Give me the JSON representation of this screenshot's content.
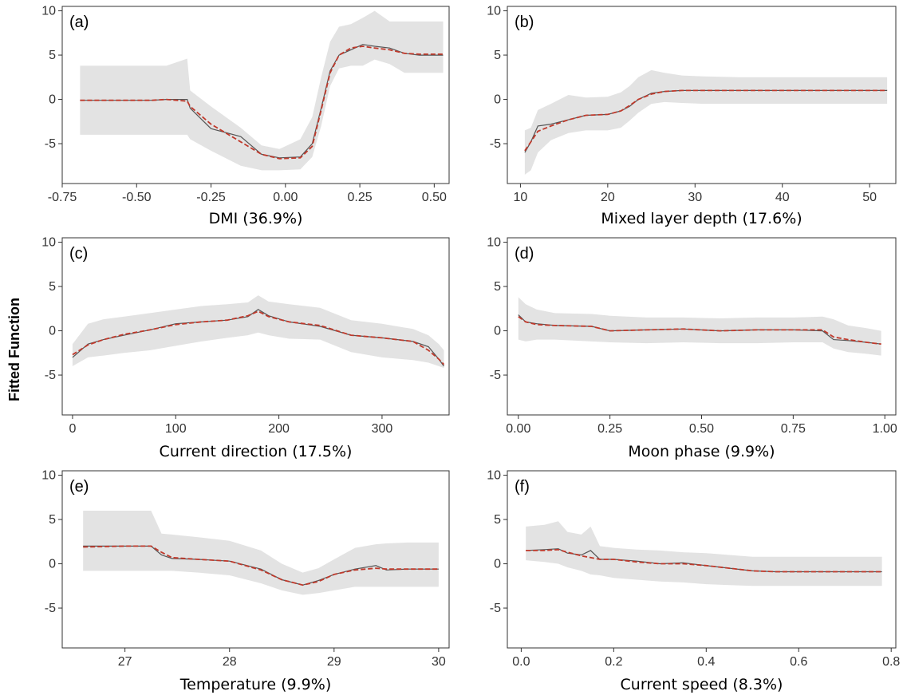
{
  "figure": {
    "ylabel": "Fitted Function"
  },
  "colors": {
    "band": "#e3e3e3",
    "observed_line": "#555555",
    "fitted_line": "#c0392b",
    "frame": "#333333"
  },
  "chart_data": [
    {
      "type": "line",
      "panel_label": "(a)",
      "xlabel": "DMI (36.9%)",
      "xlim": [
        -0.75,
        0.55
      ],
      "ylim": [
        -9.5,
        10.5
      ],
      "xticks": [
        -0.75,
        -0.5,
        -0.25,
        0.0,
        0.25,
        0.5
      ],
      "xtick_labels": [
        "-0.75",
        "-0.50",
        "-0.25",
        "0.00",
        "0.25",
        "0.50"
      ],
      "yticks": [
        10,
        5,
        0,
        -5
      ],
      "ytick_labels": [
        "10",
        "5",
        "0",
        "-5"
      ],
      "x": [
        -0.69,
        -0.45,
        -0.4,
        -0.33,
        -0.32,
        -0.25,
        -0.15,
        -0.08,
        -0.02,
        0.05,
        0.09,
        0.12,
        0.15,
        0.18,
        0.22,
        0.26,
        0.3,
        0.35,
        0.4,
        0.45,
        0.5,
        0.53
      ],
      "series": [
        {
          "role": "upper",
          "values": [
            3.8,
            3.8,
            3.8,
            4.6,
            1.0,
            -0.8,
            -3.2,
            -5.2,
            -5.6,
            -4.5,
            -2.0,
            2.5,
            6.5,
            8.2,
            8.5,
            9.2,
            10.0,
            8.8,
            8.8,
            8.8,
            8.8,
            8.8
          ]
        },
        {
          "role": "lower",
          "values": [
            -4.0,
            -4.0,
            -4.0,
            -4.0,
            -4.5,
            -5.8,
            -7.5,
            -8.0,
            -8.0,
            -7.9,
            -6.5,
            -3.0,
            1.5,
            3.5,
            3.8,
            3.8,
            4.5,
            4.0,
            3.0,
            3.0,
            3.0,
            3.0
          ]
        },
        {
          "role": "observed",
          "values": [
            -0.1,
            -0.1,
            0.0,
            0.0,
            -1.0,
            -3.3,
            -4.2,
            -6.2,
            -6.6,
            -6.5,
            -5.0,
            -1.0,
            3.2,
            5.0,
            5.6,
            6.2,
            6.0,
            5.8,
            5.2,
            5.0,
            5.0,
            5.0
          ]
        },
        {
          "role": "fitted",
          "values": [
            -0.1,
            -0.1,
            0.0,
            -0.2,
            -0.8,
            -2.8,
            -4.8,
            -6.2,
            -6.7,
            -6.6,
            -5.3,
            -1.2,
            3.0,
            5.0,
            5.8,
            6.0,
            5.8,
            5.6,
            5.2,
            5.1,
            5.1,
            5.1
          ]
        }
      ]
    },
    {
      "type": "line",
      "panel_label": "(b)",
      "xlabel": "Mixed layer depth (17.6%)",
      "xlim": [
        8.5,
        53
      ],
      "ylim": [
        -9.5,
        10.5
      ],
      "xticks": [
        10,
        20,
        30,
        40,
        50
      ],
      "xtick_labels": [
        "10",
        "20",
        "30",
        "40",
        "50"
      ],
      "yticks": [
        10,
        5,
        0,
        -5
      ],
      "ytick_labels": [
        "10",
        "5",
        "0",
        "-5"
      ],
      "x": [
        10.5,
        11.2,
        12.0,
        13.5,
        15.5,
        17.5,
        20.0,
        21.5,
        22.5,
        23.5,
        25.0,
        26.5,
        28.5,
        31.0,
        35.0,
        40.0,
        45.0,
        52.0
      ],
      "series": [
        {
          "role": "upper",
          "values": [
            -3.5,
            -3.2,
            -1.2,
            -0.5,
            0.5,
            0.2,
            0.3,
            0.8,
            1.5,
            2.5,
            3.3,
            3.0,
            2.7,
            2.6,
            2.5,
            2.5,
            2.5,
            2.5
          ]
        },
        {
          "role": "lower",
          "values": [
            -8.5,
            -8.0,
            -6.0,
            -4.6,
            -3.8,
            -3.5,
            -3.5,
            -3.2,
            -2.4,
            -1.5,
            -0.5,
            -0.3,
            -0.4,
            -0.5,
            -0.5,
            -0.5,
            -0.5,
            -0.5
          ]
        },
        {
          "role": "observed",
          "values": [
            -6.0,
            -4.8,
            -3.0,
            -2.8,
            -2.3,
            -1.8,
            -1.7,
            -1.3,
            -0.8,
            0.0,
            0.7,
            0.9,
            1.0,
            1.0,
            1.0,
            1.0,
            1.0,
            1.0
          ]
        },
        {
          "role": "fitted",
          "values": [
            -5.8,
            -4.8,
            -3.6,
            -3.0,
            -2.3,
            -1.8,
            -1.7,
            -1.3,
            -0.7,
            0.0,
            0.6,
            0.9,
            1.0,
            1.0,
            1.0,
            1.0,
            1.0,
            1.0
          ]
        }
      ]
    },
    {
      "type": "line",
      "panel_label": "(c)",
      "xlabel": "Current direction (17.5%)",
      "xlim": [
        -10,
        365
      ],
      "ylim": [
        -9.5,
        10.5
      ],
      "xticks": [
        0,
        100,
        200,
        300
      ],
      "xtick_labels": [
        "0",
        "100",
        "200",
        "300"
      ],
      "yticks": [
        10,
        5,
        0,
        -5
      ],
      "ytick_labels": [
        "10",
        "5",
        "0",
        "-5"
      ],
      "x": [
        0,
        15,
        30,
        50,
        75,
        100,
        125,
        150,
        170,
        180,
        190,
        210,
        240,
        270,
        300,
        330,
        345,
        355,
        360
      ],
      "series": [
        {
          "role": "upper",
          "values": [
            -1.5,
            0.8,
            1.3,
            1.6,
            2.0,
            2.4,
            2.8,
            3.0,
            3.2,
            4.0,
            3.3,
            3.0,
            2.6,
            1.2,
            0.8,
            0.2,
            -0.5,
            -1.5,
            -2.2
          ]
        },
        {
          "role": "lower",
          "values": [
            -4.0,
            -3.0,
            -2.8,
            -2.5,
            -2.2,
            -1.7,
            -1.2,
            -0.8,
            -0.5,
            -0.2,
            -0.5,
            -0.9,
            -1.0,
            -2.4,
            -3.0,
            -3.3,
            -3.6,
            -4.0,
            -4.2
          ]
        },
        {
          "role": "observed",
          "values": [
            -3.0,
            -1.5,
            -1.0,
            -0.5,
            0.1,
            0.8,
            1.0,
            1.2,
            1.6,
            2.4,
            1.7,
            1.0,
            0.5,
            -0.5,
            -0.8,
            -1.2,
            -1.8,
            -3.2,
            -4.0
          ]
        },
        {
          "role": "fitted",
          "values": [
            -2.7,
            -1.6,
            -1.0,
            -0.4,
            0.1,
            0.7,
            1.0,
            1.2,
            1.7,
            2.2,
            1.6,
            1.0,
            0.6,
            -0.5,
            -0.8,
            -1.2,
            -2.2,
            -3.2,
            -3.8
          ]
        }
      ]
    },
    {
      "type": "line",
      "panel_label": "(d)",
      "xlabel": "Moon phase (9.9%)",
      "xlim": [
        -0.03,
        1.03
      ],
      "ylim": [
        -9.5,
        10.5
      ],
      "xticks": [
        0.0,
        0.25,
        0.5,
        0.75,
        1.0
      ],
      "xtick_labels": [
        "0.00",
        "0.25",
        "0.50",
        "0.75",
        "1.00"
      ],
      "yticks": [
        10,
        5,
        0,
        -5
      ],
      "ytick_labels": [
        "10",
        "5",
        "0",
        "-5"
      ],
      "x": [
        0.0,
        0.02,
        0.05,
        0.1,
        0.2,
        0.25,
        0.35,
        0.45,
        0.55,
        0.65,
        0.75,
        0.83,
        0.86,
        0.9,
        0.95,
        0.99
      ],
      "series": [
        {
          "role": "upper",
          "values": [
            3.8,
            3.0,
            2.4,
            2.0,
            1.9,
            1.7,
            1.5,
            1.5,
            1.4,
            1.5,
            1.5,
            1.6,
            1.3,
            0.6,
            0.3,
            0.0
          ]
        },
        {
          "role": "lower",
          "values": [
            -1.0,
            -1.2,
            -1.0,
            -1.0,
            -1.2,
            -1.3,
            -1.4,
            -1.3,
            -1.4,
            -1.4,
            -1.3,
            -1.3,
            -2.0,
            -2.4,
            -2.6,
            -2.8
          ]
        },
        {
          "role": "observed",
          "values": [
            1.8,
            1.0,
            0.8,
            0.6,
            0.5,
            0.0,
            0.1,
            0.2,
            0.0,
            0.1,
            0.1,
            0.0,
            -1.0,
            -1.1,
            -1.3,
            -1.5
          ]
        },
        {
          "role": "fitted",
          "values": [
            1.6,
            1.0,
            0.7,
            0.6,
            0.5,
            0.0,
            0.1,
            0.2,
            0.0,
            0.1,
            0.1,
            0.1,
            -0.7,
            -1.0,
            -1.3,
            -1.5
          ]
        }
      ]
    },
    {
      "type": "line",
      "panel_label": "(e)",
      "xlabel": "Temperature (9.9%)",
      "xlim": [
        26.4,
        30.1
      ],
      "ylim": [
        -9.5,
        10.5
      ],
      "xticks": [
        27,
        28,
        29,
        30
      ],
      "xtick_labels": [
        "27",
        "28",
        "29",
        "30"
      ],
      "yticks": [
        10,
        5,
        0,
        -5
      ],
      "ytick_labels": [
        "10",
        "5",
        "0",
        "-5"
      ],
      "x": [
        26.6,
        27.0,
        27.25,
        27.35,
        27.45,
        27.7,
        28.0,
        28.3,
        28.5,
        28.7,
        28.85,
        29.0,
        29.2,
        29.4,
        29.5,
        29.7,
        30.0
      ],
      "series": [
        {
          "role": "upper",
          "values": [
            6.0,
            6.0,
            6.0,
            3.4,
            3.3,
            3.0,
            2.6,
            1.5,
            0.0,
            -1.0,
            -0.5,
            0.5,
            1.8,
            2.2,
            2.3,
            2.4,
            2.4
          ]
        },
        {
          "role": "lower",
          "values": [
            -0.8,
            -0.8,
            -0.8,
            -0.8,
            -0.8,
            -1.0,
            -1.3,
            -2.2,
            -3.0,
            -3.5,
            -3.3,
            -3.0,
            -2.6,
            -2.6,
            -2.6,
            -2.6,
            -2.6
          ]
        },
        {
          "role": "observed",
          "values": [
            2.0,
            2.0,
            2.0,
            1.0,
            0.6,
            0.5,
            0.3,
            -0.6,
            -1.8,
            -2.4,
            -1.9,
            -1.2,
            -0.6,
            -0.2,
            -0.7,
            -0.6,
            -0.6
          ]
        },
        {
          "role": "fitted",
          "values": [
            1.9,
            2.0,
            2.0,
            1.3,
            0.7,
            0.5,
            0.3,
            -0.7,
            -1.8,
            -2.4,
            -2.0,
            -1.2,
            -0.7,
            -0.5,
            -0.6,
            -0.6,
            -0.6
          ]
        }
      ]
    },
    {
      "type": "line",
      "panel_label": "(f)",
      "xlabel": "Current speed (8.3%)",
      "xlim": [
        -0.03,
        0.81
      ],
      "ylim": [
        -9.5,
        10.5
      ],
      "xticks": [
        0.0,
        0.2,
        0.4,
        0.6,
        0.8
      ],
      "xtick_labels": [
        "0.0",
        "0.2",
        "0.4",
        "0.6",
        "0.8"
      ],
      "yticks": [
        10,
        5,
        0,
        -5
      ],
      "ytick_labels": [
        "10",
        "5",
        "0",
        "-5"
      ],
      "x": [
        0.01,
        0.05,
        0.08,
        0.1,
        0.13,
        0.15,
        0.17,
        0.2,
        0.25,
        0.3,
        0.35,
        0.4,
        0.45,
        0.5,
        0.55,
        0.6,
        0.7,
        0.78
      ],
      "series": [
        {
          "role": "upper",
          "values": [
            4.2,
            4.4,
            4.8,
            3.6,
            3.3,
            4.2,
            2.0,
            1.8,
            1.6,
            1.5,
            1.3,
            1.2,
            1.0,
            0.8,
            0.8,
            0.8,
            0.8,
            0.8
          ]
        },
        {
          "role": "lower",
          "values": [
            0.4,
            0.2,
            0.0,
            -0.4,
            -0.8,
            -1.2,
            -1.3,
            -1.6,
            -1.8,
            -2.0,
            -2.1,
            -2.3,
            -2.4,
            -2.5,
            -2.5,
            -2.5,
            -2.5,
            -2.5
          ]
        },
        {
          "role": "observed",
          "values": [
            1.5,
            1.6,
            1.7,
            1.2,
            1.0,
            1.5,
            0.5,
            0.5,
            0.3,
            0.0,
            0.1,
            -0.2,
            -0.5,
            -0.8,
            -0.9,
            -0.9,
            -0.9,
            -0.9
          ]
        },
        {
          "role": "fitted",
          "values": [
            1.5,
            1.5,
            1.6,
            1.3,
            0.9,
            0.7,
            0.5,
            0.5,
            0.2,
            0.0,
            0.0,
            -0.2,
            -0.5,
            -0.8,
            -0.9,
            -0.9,
            -0.9,
            -0.9
          ]
        }
      ]
    }
  ]
}
